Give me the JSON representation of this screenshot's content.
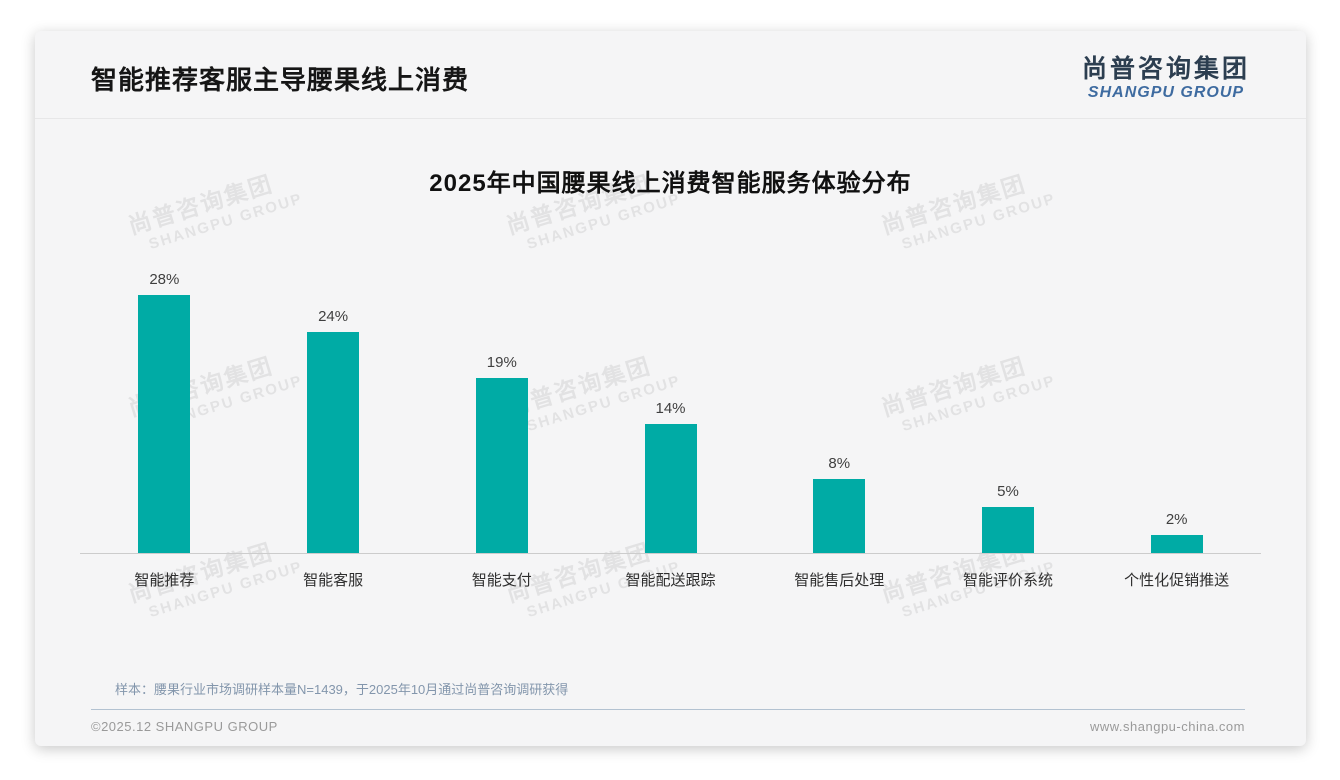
{
  "slide": {
    "title": "智能推荐客服主导腰果线上消费",
    "logo": {
      "zh": "尚普咨询集团",
      "en": "SHANGPU GROUP"
    },
    "watermark": {
      "zh": "尚普咨询集团",
      "en": "SHANGPU GROUP"
    },
    "sample_note": "样本：腰果行业市场调研样本量N=1439，于2025年10月通过尚普咨询调研获得",
    "footer": {
      "left": "©2025.12 SHANGPU GROUP",
      "right": "www.shangpu-china.com"
    }
  },
  "chart_data": {
    "type": "bar",
    "title": "2025年中国腰果线上消费智能服务体验分布",
    "categories": [
      "智能推荐",
      "智能客服",
      "智能支付",
      "智能配送跟踪",
      "智能售后处理",
      "智能评价系统",
      "个性化促销推送"
    ],
    "values": [
      28,
      24,
      19,
      14,
      8,
      5,
      2
    ],
    "unit": "%",
    "ylim": [
      0,
      30
    ],
    "grid": false,
    "legend": "none",
    "data_labels": true,
    "bar_color": "#00ABA5"
  },
  "colors": {
    "bar": "#00ABA5",
    "logo_zh": "#2C3E50",
    "logo_en": "#3E6BA0",
    "note_text": "#8396AC",
    "footer_text": "#9A9A9A",
    "slide_bg": "#F5F5F6"
  }
}
